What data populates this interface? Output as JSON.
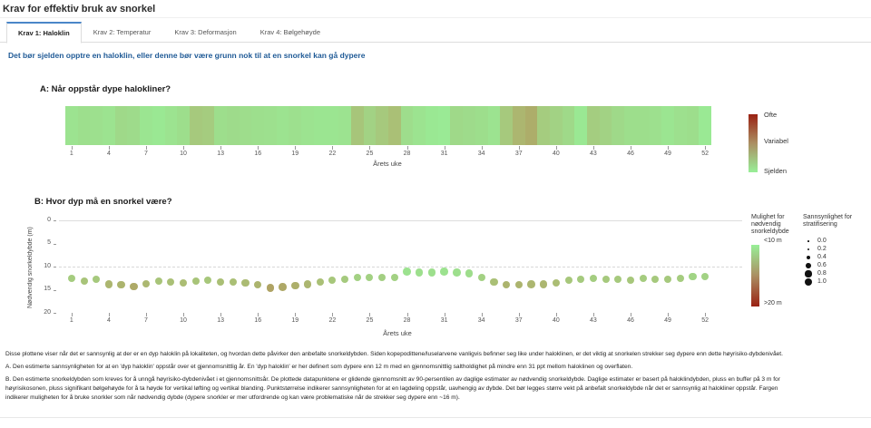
{
  "page": {
    "title": "Krav for effektiv bruk av snorkel",
    "tabs": [
      {
        "label": "Krav 1: Haloklin",
        "active": true
      },
      {
        "label": "Krav 2: Temperatur",
        "active": false
      },
      {
        "label": "Krav 3: Deformasjon",
        "active": false
      },
      {
        "label": "Krav 4: Bølgehøyde",
        "active": false
      }
    ],
    "subtitle": "Det bør sjelden opptre en haloklin, eller denne bør være grunn nok til at en snorkel kan gå dypere",
    "accent_color": "#4a86c8",
    "subtitle_color": "#1f5a96",
    "footer_lines": [
      "Disse plottene viser når det er sannsynlig at der er en dyp haloklin på lokaliteten, og hvordan dette påvirker den anbefalte snorkeldybden. Siden kopepodittene/luselarvene vanligvis befinner seg like under haloklinen, er det viktig at snorkelen strekker seg dypere enn dette høyrisiko-dybdenivået.",
      "A. Den estimerte sannsynligheten for at en 'dyp haloklin' oppstår over et gjennomsnittlig år. En 'dyp haloklin' er her definert som dypere enn 12 m med en gjennomsnittlig saltholdighet på mindre enn 31 ppt mellom haloklinen og overflaten.",
      "B. Den estimerte snorkeldybden som kreves for å unngå høyrisiko-dybdenivået i et gjennomsnittsår. De plottede datapunktene er glidende gjennomsnitt av 90-persentilen av daglige estimater av nødvendig snorkeldybde. Daglige estimater er basert på haloklindybden, pluss en buffer på 3 m for",
      "høyrisikosonen, pluss signifikant bølgehøyde for å ta høyde for vertikal løfting og vertikal blanding. Punktstørrelse indikerer sannsynligheten for at en lagdeling oppstår, uavhengig av dybde. Det bør legges større vekt på anbefalt snorkeldybde når det er sannsynlig at halokliner oppstår. Fargen",
      "indikerer muligheten for å bruke snorkler som når nødvendig dybde (dypere snorkler er mer utfordrende og kan være problematiske når de strekker seg dypere enn ~16 m)."
    ]
  },
  "chart_data": [
    {
      "type": "heatmap",
      "title": "A: Når oppstår dype halokliner?",
      "xlabel": "Årets uke",
      "x_ticks": [
        1,
        4,
        7,
        10,
        13,
        16,
        19,
        22,
        25,
        28,
        31,
        34,
        37,
        40,
        43,
        46,
        49,
        52
      ],
      "weeks": 52,
      "values_frequency_0to1": [
        0.1,
        0.13,
        0.12,
        0.1,
        0.18,
        0.16,
        0.08,
        0.06,
        0.1,
        0.14,
        0.28,
        0.26,
        0.14,
        0.16,
        0.15,
        0.13,
        0.12,
        0.1,
        0.12,
        0.1,
        0.08,
        0.08,
        0.1,
        0.3,
        0.22,
        0.28,
        0.33,
        0.15,
        0.1,
        0.06,
        0.04,
        0.18,
        0.16,
        0.14,
        0.1,
        0.28,
        0.38,
        0.42,
        0.26,
        0.22,
        0.18,
        0.06,
        0.25,
        0.22,
        0.18,
        0.14,
        0.14,
        0.12,
        0.08,
        0.12,
        0.14,
        0.05
      ],
      "colorbar": {
        "labels": {
          "top": "Ofte",
          "mid": "Variabel",
          "bottom": "Sjelden"
        },
        "top_color": "#9a2113",
        "mid_color": "#ab8f62",
        "bottom_color": "#98ef98"
      }
    },
    {
      "type": "scatter",
      "title": "B: Hvor dyp må en snorkel være?",
      "xlabel": "Årets uke",
      "ylabel": "Nødvendig snorkeldybde (m)",
      "x_ticks": [
        1,
        4,
        7,
        10,
        13,
        16,
        19,
        22,
        25,
        28,
        31,
        34,
        37,
        40,
        43,
        46,
        49,
        52
      ],
      "y_ticks": [
        0,
        5,
        10,
        15,
        20
      ],
      "ylim": [
        0,
        20
      ],
      "y_inverted": true,
      "dashed_gridline_at_m": 10,
      "x_weeks": [
        1,
        2,
        3,
        4,
        5,
        6,
        7,
        8,
        9,
        10,
        11,
        12,
        13,
        14,
        15,
        16,
        17,
        18,
        19,
        20,
        21,
        22,
        23,
        24,
        25,
        26,
        27,
        28,
        29,
        30,
        31,
        32,
        33,
        34,
        35,
        36,
        37,
        38,
        39,
        40,
        41,
        42,
        43,
        44,
        45,
        46,
        47,
        48,
        49,
        50,
        51,
        52
      ],
      "depth_m": [
        12.6,
        13.1,
        12.8,
        13.8,
        13.9,
        14.3,
        13.7,
        13.1,
        13.3,
        13.5,
        13.1,
        12.9,
        13.4,
        13.4,
        13.6,
        13.9,
        14.6,
        14.4,
        14.1,
        13.8,
        13.3,
        12.9,
        12.7,
        12.3,
        12.3,
        12.4,
        12.3,
        11.1,
        11.3,
        11.3,
        11.1,
        11.3,
        11.5,
        12.3,
        13.3,
        13.9,
        13.9,
        13.8,
        13.8,
        13.5,
        12.9,
        12.7,
        12.5,
        12.8,
        12.8,
        12.9,
        12.6,
        12.8,
        12.8,
        12.6,
        12.1,
        12.2
      ],
      "stratification_prob": [
        0.8,
        0.8,
        0.8,
        0.85,
        0.85,
        0.9,
        0.85,
        0.8,
        0.8,
        0.8,
        0.8,
        0.8,
        0.8,
        0.8,
        0.85,
        0.85,
        0.95,
        0.9,
        0.9,
        0.85,
        0.8,
        0.8,
        0.8,
        0.8,
        0.8,
        0.8,
        0.8,
        0.9,
        0.9,
        0.9,
        0.9,
        0.9,
        0.9,
        0.85,
        0.85,
        0.9,
        0.9,
        0.9,
        0.9,
        0.85,
        0.8,
        0.8,
        0.8,
        0.8,
        0.8,
        0.8,
        0.8,
        0.8,
        0.8,
        0.8,
        0.85,
        0.85
      ],
      "color_legend": {
        "title": "Mulighet for nødvendig snorkeldybde",
        "top_label": "<10 m",
        "bottom_label": ">20 m",
        "top_color": "#98ef98",
        "bottom_color": "#9a2113"
      },
      "size_legend": {
        "title": "Sannsynlighet for stratifisering",
        "values": [
          "0.0",
          "0.2",
          "0.4",
          "0.6",
          "0.8",
          "1.0"
        ]
      }
    }
  ]
}
